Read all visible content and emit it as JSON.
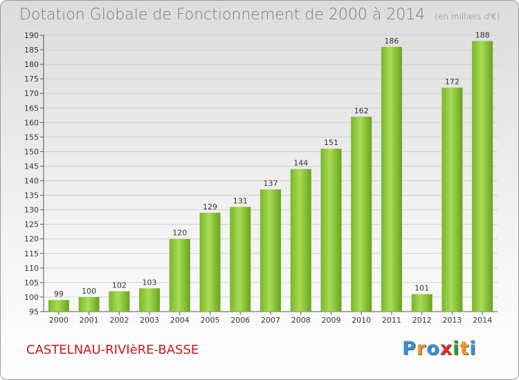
{
  "title": "Dotation Globale de Fonctionnement de 2000 à 2014",
  "subtitle": "(en milliers d'€)",
  "commune": "CASTELNAU-RIVIèRE-BASSE",
  "logo": [
    "P",
    "r",
    "o",
    "x",
    "i",
    "t",
    "i"
  ],
  "logo_colors": [
    "#3b8fd6",
    "#f29a1f",
    "#3b8fd6",
    "#e0302f",
    "#2a9a3a",
    "#f29a1f",
    "#3b8fd6"
  ],
  "colors": {
    "bar_light": "#9fd44a",
    "bar_dark": "#6aa21c",
    "title": "#7a7a7a",
    "commune": "#c41a1a"
  },
  "chart_data": {
    "type": "bar",
    "title": "Dotation Globale de Fonctionnement de 2000 à 2014",
    "subtitle": "(en milliers d'€)",
    "categories": [
      "2000",
      "2001",
      "2002",
      "2003",
      "2004",
      "2005",
      "2006",
      "2007",
      "2008",
      "2009",
      "2010",
      "2011",
      "2012",
      "2013",
      "2014"
    ],
    "values": [
      99,
      100,
      102,
      103,
      120,
      129,
      131,
      137,
      144,
      151,
      162,
      186,
      101,
      172,
      188
    ],
    "ylim": [
      95,
      190
    ],
    "yticks": [
      95,
      100,
      105,
      110,
      115,
      120,
      125,
      130,
      135,
      140,
      145,
      150,
      155,
      160,
      165,
      170,
      175,
      180,
      185,
      190
    ],
    "grid": true,
    "data_labels": true
  }
}
